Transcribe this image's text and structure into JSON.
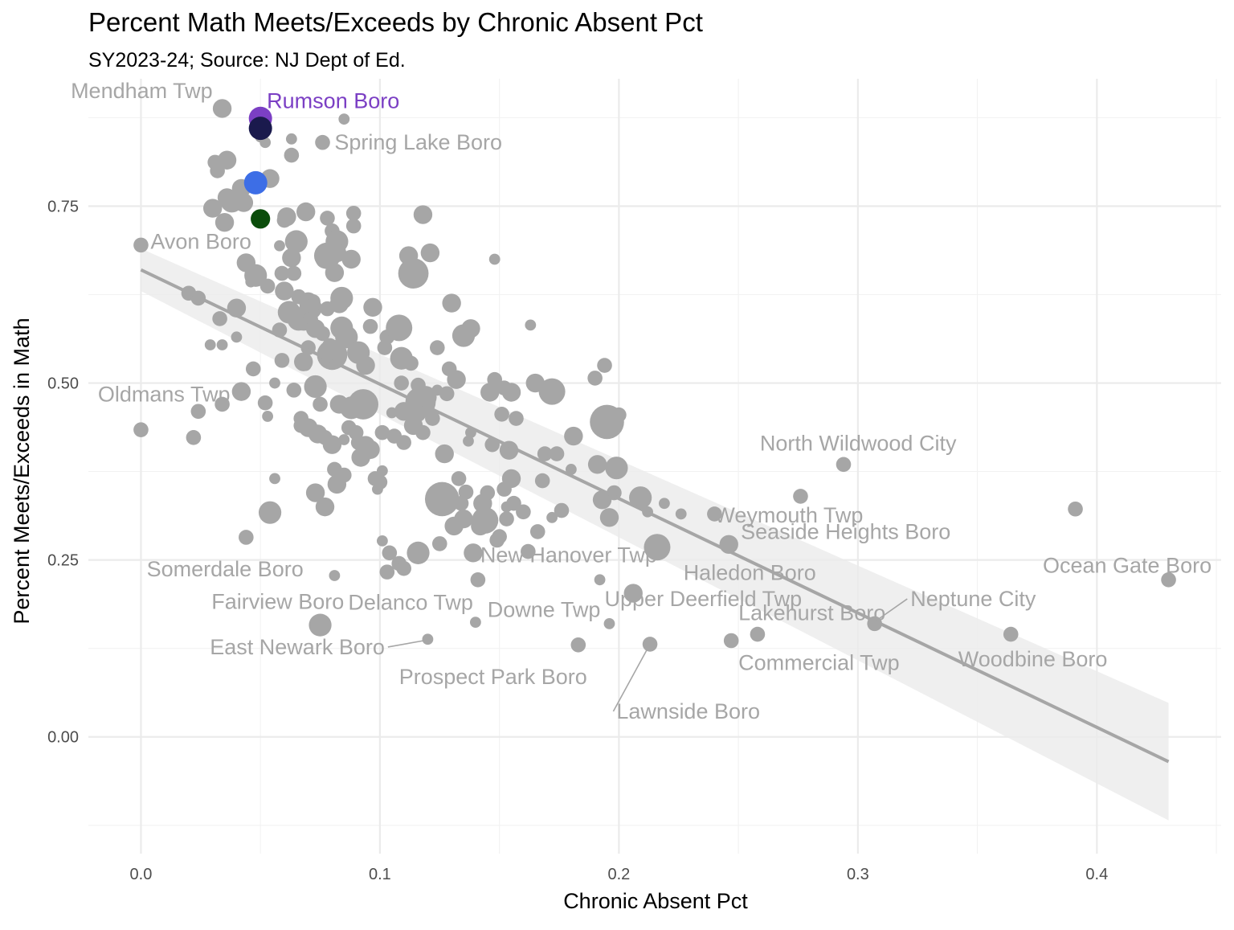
{
  "chart_data": {
    "type": "scatter",
    "title": "Percent Math Meets/Exceeds by Chronic Absent Pct",
    "subtitle": "SY2023-24; Source: NJ Dept of Ed.",
    "xlabel": "Chronic Absent Pct",
    "ylabel": "Percent Meets/Exceeds in Math",
    "xlim": [
      -0.022,
      0.452
    ],
    "ylim": [
      -0.165,
      0.93
    ],
    "x_ticks": [
      0.0,
      0.1,
      0.2,
      0.3,
      0.4
    ],
    "x_tick_labels": [
      "0.0",
      "0.1",
      "0.2",
      "0.3",
      "0.4"
    ],
    "y_ticks": [
      0.0,
      0.25,
      0.5,
      0.75
    ],
    "y_tick_labels": [
      "0.00",
      "0.25",
      "0.50",
      "0.75"
    ],
    "grid": true,
    "legend": "none",
    "trend": {
      "type": "linear",
      "x_start": 0.0,
      "y_start": 0.66,
      "x_end": 0.43,
      "y_end": -0.035,
      "band": [
        [
          0.0,
          0.69,
          0.63
        ],
        [
          0.43,
          0.048,
          -0.118
        ]
      ]
    },
    "highlights": [
      {
        "name": "Rumson Boro",
        "x": 0.05,
        "y": 0.874,
        "color": "#7b3fc4",
        "size": 5
      },
      {
        "color": "#1a1a4d",
        "x": 0.05,
        "y": 0.86,
        "size": 5
      },
      {
        "color": "#3d6ee6",
        "x": 0.048,
        "y": 0.783,
        "size": 5
      },
      {
        "color": "#0b4d0b",
        "x": 0.05,
        "y": 0.732,
        "size": 4
      }
    ],
    "labels": [
      {
        "text": "Mendham Twp",
        "x": 0.034,
        "y": 0.888,
        "anchor": "end",
        "dx": -0.004,
        "dy": 0.025
      },
      {
        "text": "Spring Lake Boro",
        "x": 0.076,
        "y": 0.84,
        "anchor": "start",
        "dx": 0.005,
        "dy": 0.0
      },
      {
        "text": "Avon Boro",
        "x": 0.0,
        "y": 0.695,
        "anchor": "start",
        "dx": 0.004,
        "dy": 0.005
      },
      {
        "text": "Oldmans Twp",
        "x": 0.0,
        "y": 0.434,
        "anchor": "start",
        "dx": -0.018,
        "dy": 0.05
      },
      {
        "text": "Somerdale Boro",
        "x": 0.044,
        "y": 0.282,
        "anchor": "end",
        "dx": 0.024,
        "dy": -0.045
      },
      {
        "text": "Fairview Boro",
        "x": 0.075,
        "y": 0.158,
        "anchor": "end",
        "dx": 0.01,
        "dy": 0.033
      },
      {
        "text": "East Newark Boro",
        "x": 0.12,
        "y": 0.137,
        "anchor": "end",
        "dx": -0.018,
        "dy": -0.01,
        "leader": true
      },
      {
        "text": "Delanco Twp",
        "x": 0.14,
        "y": 0.162,
        "anchor": "end",
        "dx": -0.001,
        "dy": 0.028
      },
      {
        "text": "Prospect Park Boro",
        "x": 0.135,
        "y": 0.12,
        "anchor": "start",
        "dx": -0.027,
        "dy": -0.035
      },
      {
        "text": "Downe Twp",
        "x": 0.182,
        "y": 0.13,
        "anchor": "start",
        "dx": -0.037,
        "dy": 0.05
      },
      {
        "text": "New Hanover Twp",
        "x": 0.142,
        "y": 0.222,
        "anchor": "start",
        "dx": 0.0,
        "dy": 0.035
      },
      {
        "text": "Upper Deerfield Twp",
        "x": 0.206,
        "y": 0.203,
        "anchor": "start",
        "dx": -0.012,
        "dy": -0.008
      },
      {
        "text": "Lawnside Boro",
        "x": 0.213,
        "y": 0.131,
        "anchor": "start",
        "dx": -0.014,
        "dy": -0.095,
        "leader": true
      },
      {
        "text": "Weymouth Twp",
        "x": 0.24,
        "y": 0.315,
        "anchor": "start",
        "dx": 0.0,
        "dy": -0.002
      },
      {
        "text": "Haledon Boro",
        "x": 0.246,
        "y": 0.272,
        "anchor": "start",
        "dx": -0.019,
        "dy": -0.04
      },
      {
        "text": "Lakehurst Boro",
        "x": 0.307,
        "y": 0.16,
        "anchor": "start",
        "dx": -0.057,
        "dy": 0.015
      },
      {
        "text": "Commercial Twp",
        "x": 0.258,
        "y": 0.145,
        "anchor": "start",
        "dx": -0.008,
        "dy": -0.04
      },
      {
        "text": "North Wildwood City",
        "x": 0.294,
        "y": 0.385,
        "anchor": "start",
        "dx": -0.035,
        "dy": 0.03
      },
      {
        "text": "Seaside Heights Boro",
        "x": 0.276,
        "y": 0.34,
        "anchor": "start",
        "dx": -0.025,
        "dy": -0.05
      },
      {
        "text": "Neptune City",
        "x": 0.308,
        "y": 0.165,
        "anchor": "start",
        "dx": 0.014,
        "dy": 0.03,
        "leader": true
      },
      {
        "text": "Woodbine Boro",
        "x": 0.364,
        "y": 0.145,
        "anchor": "start",
        "dx": -0.022,
        "dy": -0.035
      },
      {
        "text": "Ocean Gate Boro",
        "x": 0.43,
        "y": 0.222,
        "anchor": "end",
        "dx": 0.018,
        "dy": 0.02
      }
    ],
    "points": [
      [
        0.0,
        0.695,
        2
      ],
      [
        0.0,
        0.434,
        2
      ],
      [
        0.02,
        0.627,
        2
      ],
      [
        0.022,
        0.423,
        2
      ],
      [
        0.024,
        0.62,
        2
      ],
      [
        0.024,
        0.46,
        2
      ],
      [
        0.029,
        0.554,
        1
      ],
      [
        0.03,
        0.747,
        3
      ],
      [
        0.031,
        0.812,
        2
      ],
      [
        0.032,
        0.8,
        2
      ],
      [
        0.033,
        0.591,
        2
      ],
      [
        0.034,
        0.554,
        1
      ],
      [
        0.034,
        0.888,
        3
      ],
      [
        0.034,
        0.47,
        2
      ],
      [
        0.035,
        0.727,
        3
      ],
      [
        0.036,
        0.815,
        3
      ],
      [
        0.036,
        0.762,
        3
      ],
      [
        0.038,
        0.757,
        4
      ],
      [
        0.04,
        0.606,
        3
      ],
      [
        0.04,
        0.565,
        1
      ],
      [
        0.042,
        0.775,
        3
      ],
      [
        0.042,
        0.488,
        3
      ],
      [
        0.043,
        0.755,
        3
      ],
      [
        0.044,
        0.67,
        3
      ],
      [
        0.044,
        0.282,
        2
      ],
      [
        0.046,
        0.643,
        1
      ],
      [
        0.047,
        0.52,
        2
      ],
      [
        0.048,
        0.652,
        4
      ],
      [
        0.05,
        0.848,
        1
      ],
      [
        0.052,
        0.84,
        1
      ],
      [
        0.052,
        0.472,
        2
      ],
      [
        0.053,
        0.453,
        1
      ],
      [
        0.053,
        0.637,
        2
      ],
      [
        0.054,
        0.789,
        3
      ],
      [
        0.054,
        0.317,
        4
      ],
      [
        0.056,
        0.5,
        1
      ],
      [
        0.056,
        0.365,
        1
      ],
      [
        0.058,
        0.694,
        1
      ],
      [
        0.058,
        0.575,
        2
      ],
      [
        0.059,
        0.532,
        2
      ],
      [
        0.059,
        0.655,
        2
      ],
      [
        0.06,
        0.63,
        3
      ],
      [
        0.06,
        0.73,
        2
      ],
      [
        0.061,
        0.735,
        3
      ],
      [
        0.062,
        0.6,
        4
      ],
      [
        0.063,
        0.845,
        1
      ],
      [
        0.063,
        0.822,
        2
      ],
      [
        0.063,
        0.677,
        3
      ],
      [
        0.064,
        0.49,
        2
      ],
      [
        0.064,
        0.655,
        2
      ],
      [
        0.065,
        0.7,
        4
      ],
      [
        0.066,
        0.622,
        2
      ],
      [
        0.066,
        0.59,
        4
      ],
      [
        0.067,
        0.45,
        2
      ],
      [
        0.067,
        0.44,
        2
      ],
      [
        0.068,
        0.53,
        3
      ],
      [
        0.068,
        0.59,
        4
      ],
      [
        0.069,
        0.742,
        3
      ],
      [
        0.069,
        0.525,
        1
      ],
      [
        0.07,
        0.55,
        2
      ],
      [
        0.07,
        0.437,
        3
      ],
      [
        0.07,
        0.615,
        3
      ],
      [
        0.071,
        0.606,
        4
      ],
      [
        0.071,
        0.59,
        2
      ],
      [
        0.072,
        0.615,
        2
      ],
      [
        0.072,
        0.61,
        2
      ],
      [
        0.073,
        0.495,
        4
      ],
      [
        0.073,
        0.345,
        3
      ],
      [
        0.073,
        0.577,
        3
      ],
      [
        0.074,
        0.428,
        3
      ],
      [
        0.075,
        0.47,
        2
      ],
      [
        0.075,
        0.158,
        4
      ],
      [
        0.076,
        0.84,
        2
      ],
      [
        0.076,
        0.57,
        2
      ],
      [
        0.077,
        0.423,
        2
      ],
      [
        0.077,
        0.675,
        3
      ],
      [
        0.077,
        0.325,
        3
      ],
      [
        0.078,
        0.733,
        2
      ],
      [
        0.078,
        0.68,
        5
      ],
      [
        0.078,
        0.605,
        2
      ],
      [
        0.079,
        0.553,
        2
      ],
      [
        0.08,
        0.715,
        2
      ],
      [
        0.08,
        0.413,
        3
      ],
      [
        0.08,
        0.54,
        6
      ],
      [
        0.081,
        0.378,
        2
      ],
      [
        0.081,
        0.228,
        1
      ],
      [
        0.081,
        0.656,
        3
      ],
      [
        0.082,
        0.7,
        4
      ],
      [
        0.082,
        0.357,
        3
      ],
      [
        0.082,
        0.684,
        3
      ],
      [
        0.083,
        0.612,
        3
      ],
      [
        0.083,
        0.47,
        3
      ],
      [
        0.084,
        0.578,
        4
      ],
      [
        0.084,
        0.62,
        4
      ],
      [
        0.085,
        0.873,
        1
      ],
      [
        0.085,
        0.42,
        1
      ],
      [
        0.085,
        0.37,
        2
      ],
      [
        0.086,
        0.565,
        4
      ],
      [
        0.087,
        0.437,
        2
      ],
      [
        0.088,
        0.465,
        4
      ],
      [
        0.088,
        0.675,
        3
      ],
      [
        0.089,
        0.722,
        2
      ],
      [
        0.089,
        0.74,
        2
      ],
      [
        0.09,
        0.43,
        2
      ],
      [
        0.091,
        0.416,
        2
      ],
      [
        0.091,
        0.543,
        4
      ],
      [
        0.092,
        0.395,
        3
      ],
      [
        0.093,
        0.47,
        6
      ],
      [
        0.094,
        0.412,
        3
      ],
      [
        0.094,
        0.525,
        3
      ],
      [
        0.096,
        0.58,
        2
      ],
      [
        0.096,
        0.406,
        3
      ],
      [
        0.097,
        0.607,
        3
      ],
      [
        0.098,
        0.365,
        2
      ],
      [
        0.099,
        0.35,
        1
      ],
      [
        0.1,
        0.36,
        2
      ],
      [
        0.101,
        0.43,
        2
      ],
      [
        0.101,
        0.376,
        1
      ],
      [
        0.101,
        0.277,
        1
      ],
      [
        0.102,
        0.55,
        2
      ],
      [
        0.103,
        0.565,
        2
      ],
      [
        0.103,
        0.233,
        2
      ],
      [
        0.104,
        0.26,
        2
      ],
      [
        0.105,
        0.458,
        1
      ],
      [
        0.106,
        0.425,
        2
      ],
      [
        0.108,
        0.578,
        5
      ],
      [
        0.108,
        0.245,
        2
      ],
      [
        0.109,
        0.5,
        2
      ],
      [
        0.109,
        0.535,
        4
      ],
      [
        0.11,
        0.416,
        2
      ],
      [
        0.11,
        0.46,
        3
      ],
      [
        0.11,
        0.238,
        2
      ],
      [
        0.112,
        0.68,
        3
      ],
      [
        0.113,
        0.528,
        2
      ],
      [
        0.114,
        0.44,
        3
      ],
      [
        0.114,
        0.655,
        6
      ],
      [
        0.115,
        0.46,
        4
      ],
      [
        0.116,
        0.26,
        4
      ],
      [
        0.116,
        0.497,
        2
      ],
      [
        0.117,
        0.473,
        6
      ],
      [
        0.118,
        0.43,
        2
      ],
      [
        0.118,
        0.738,
        3
      ],
      [
        0.119,
        0.48,
        4
      ],
      [
        0.12,
        0.138,
        1
      ],
      [
        0.121,
        0.684,
        3
      ],
      [
        0.122,
        0.45,
        2
      ],
      [
        0.124,
        0.49,
        1
      ],
      [
        0.124,
        0.55,
        2
      ],
      [
        0.125,
        0.273,
        2
      ],
      [
        0.126,
        0.336,
        7
      ],
      [
        0.127,
        0.4,
        3
      ],
      [
        0.128,
        0.485,
        2
      ],
      [
        0.129,
        0.52,
        2
      ],
      [
        0.13,
        0.613,
        3
      ],
      [
        0.131,
        0.298,
        3
      ],
      [
        0.132,
        0.505,
        3
      ],
      [
        0.133,
        0.365,
        2
      ],
      [
        0.134,
        0.33,
        2
      ],
      [
        0.135,
        0.308,
        3
      ],
      [
        0.135,
        0.567,
        4
      ],
      [
        0.136,
        0.346,
        2
      ],
      [
        0.137,
        0.418,
        1
      ],
      [
        0.138,
        0.577,
        3
      ],
      [
        0.138,
        0.43,
        1
      ],
      [
        0.139,
        0.26,
        3
      ],
      [
        0.14,
        0.162,
        1
      ],
      [
        0.141,
        0.222,
        2
      ],
      [
        0.142,
        0.298,
        3
      ],
      [
        0.143,
        0.33,
        3
      ],
      [
        0.144,
        0.306,
        5
      ],
      [
        0.145,
        0.345,
        2
      ],
      [
        0.146,
        0.487,
        3
      ],
      [
        0.147,
        0.413,
        2
      ],
      [
        0.148,
        0.675,
        1
      ],
      [
        0.148,
        0.505,
        2
      ],
      [
        0.149,
        0.278,
        2
      ],
      [
        0.15,
        0.283,
        2
      ],
      [
        0.151,
        0.456,
        2
      ],
      [
        0.152,
        0.35,
        2
      ],
      [
        0.152,
        0.493,
        2
      ],
      [
        0.153,
        0.325,
        1
      ],
      [
        0.153,
        0.308,
        2
      ],
      [
        0.154,
        0.405,
        3
      ],
      [
        0.155,
        0.487,
        3
      ],
      [
        0.155,
        0.365,
        3
      ],
      [
        0.156,
        0.33,
        2
      ],
      [
        0.157,
        0.45,
        2
      ],
      [
        0.16,
        0.318,
        2
      ],
      [
        0.162,
        0.262,
        2
      ],
      [
        0.163,
        0.582,
        1
      ],
      [
        0.165,
        0.5,
        3
      ],
      [
        0.166,
        0.29,
        2
      ],
      [
        0.168,
        0.362,
        2
      ],
      [
        0.169,
        0.4,
        2
      ],
      [
        0.172,
        0.31,
        1
      ],
      [
        0.172,
        0.488,
        5
      ],
      [
        0.174,
        0.4,
        2
      ],
      [
        0.176,
        0.32,
        2
      ],
      [
        0.18,
        0.378,
        1
      ],
      [
        0.181,
        0.425,
        3
      ],
      [
        0.183,
        0.13,
        2
      ],
      [
        0.19,
        0.507,
        2
      ],
      [
        0.191,
        0.385,
        3
      ],
      [
        0.192,
        0.222,
        1
      ],
      [
        0.193,
        0.335,
        3
      ],
      [
        0.194,
        0.525,
        2
      ],
      [
        0.195,
        0.445,
        7
      ],
      [
        0.196,
        0.16,
        1
      ],
      [
        0.196,
        0.31,
        3
      ],
      [
        0.198,
        0.345,
        2
      ],
      [
        0.199,
        0.38,
        4
      ],
      [
        0.2,
        0.455,
        2
      ],
      [
        0.206,
        0.203,
        3
      ],
      [
        0.209,
        0.338,
        4
      ],
      [
        0.212,
        0.318,
        1
      ],
      [
        0.213,
        0.131,
        2
      ],
      [
        0.216,
        0.268,
        5
      ],
      [
        0.219,
        0.33,
        1
      ],
      [
        0.226,
        0.315,
        1
      ],
      [
        0.24,
        0.315,
        2
      ],
      [
        0.246,
        0.272,
        3
      ],
      [
        0.247,
        0.136,
        2
      ],
      [
        0.258,
        0.145,
        2
      ],
      [
        0.276,
        0.34,
        2
      ],
      [
        0.294,
        0.385,
        2
      ],
      [
        0.307,
        0.16,
        2
      ],
      [
        0.364,
        0.145,
        2
      ],
      [
        0.391,
        0.322,
        2
      ],
      [
        0.43,
        0.222,
        2
      ]
    ]
  }
}
